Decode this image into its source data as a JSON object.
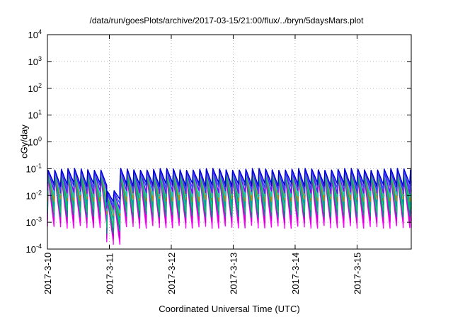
{
  "chart_data": {
    "type": "line",
    "title": "/data/run/goesPlots/archive/2017-03-15/21:00/flux/../bryn/5daysMars.plot",
    "xlabel": "Coordinated Universal Time (UTC)",
    "ylabel": "cGy/day",
    "y_scale": "log",
    "ylim": [
      0.0001,
      10000
    ],
    "xlim": [
      "2017-03-10 00:00",
      "2017-03-15 21:00"
    ],
    "x_ticks": [
      "2017-3-10",
      "2017-3-11",
      "2017-3-12",
      "2017-3-13",
      "2017-3-14",
      "2017-3-15"
    ],
    "y_ticks": [
      {
        "base": "10",
        "exp": "-4"
      },
      {
        "base": "10",
        "exp": "-3"
      },
      {
        "base": "10",
        "exp": "-2"
      },
      {
        "base": "10",
        "exp": "-1"
      },
      {
        "base": "10",
        "exp": "0"
      },
      {
        "base": "10",
        "exp": "1"
      },
      {
        "base": "10",
        "exp": "2"
      },
      {
        "base": "10",
        "exp": "3"
      },
      {
        "base": "10",
        "exp": "4"
      }
    ],
    "grid": true,
    "legend": "none",
    "pattern": {
      "description_period_hours": 2.55,
      "cycles_per_day": 9.4,
      "dip_day": 1.0
    },
    "series": [
      {
        "color": "#ff00ff",
        "peak": 0.045,
        "trough": 0.0007
      },
      {
        "color": "#cc00cc",
        "peak": 0.05,
        "trough": 0.0011
      },
      {
        "color": "#008b8b",
        "peak": 0.06,
        "trough": 0.0018
      },
      {
        "color": "#00cc66",
        "peak": 0.065,
        "trough": 0.0028
      },
      {
        "color": "#00a0a0",
        "peak": 0.07,
        "trough": 0.0045
      },
      {
        "color": "#b8860b",
        "peak": 0.075,
        "trough": 0.007
      },
      {
        "color": "#00cccc",
        "peak": 0.08,
        "trough": 0.01
      },
      {
        "color": "#8000ff",
        "peak": 0.085,
        "trough": 0.014
      },
      {
        "color": "#3050ff",
        "peak": 0.09,
        "trough": 0.02
      },
      {
        "color": "#0000cd",
        "peak": 0.095,
        "trough": 0.026
      }
    ]
  }
}
